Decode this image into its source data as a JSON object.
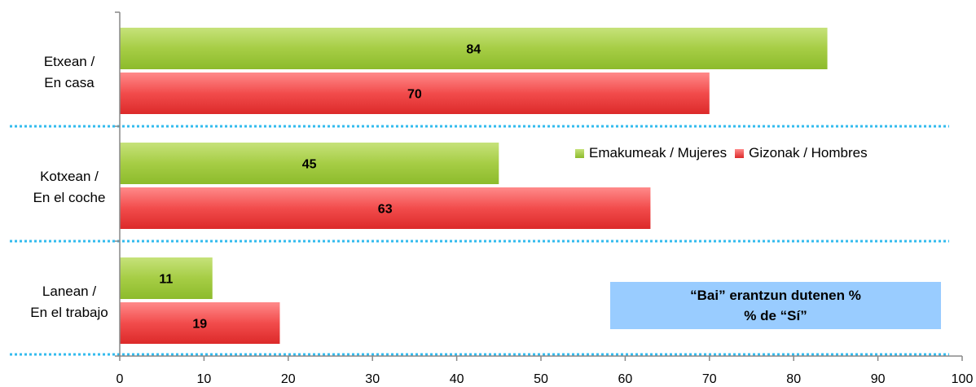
{
  "chart_data": {
    "type": "bar",
    "orientation": "horizontal",
    "categories": [
      {
        "line1": "Etxean /",
        "line2": "En casa"
      },
      {
        "line1": "Kotxean /",
        "line2": "En el coche"
      },
      {
        "line1": "Lanean /",
        "line2": "En el trabajo"
      }
    ],
    "series": [
      {
        "name": "Emakumeak / Mujeres",
        "color": "#99cc33",
        "values": [
          84,
          45,
          11
        ]
      },
      {
        "name": "Gizonak / Hombres",
        "color": "#ee3333",
        "values": [
          70,
          63,
          19
        ]
      }
    ],
    "xlim": [
      0,
      100
    ],
    "xticks": [
      "0",
      "10",
      "20",
      "30",
      "40",
      "50",
      "60",
      "70",
      "80",
      "90",
      "100"
    ],
    "legend_position": "right-middle",
    "grid": false,
    "separator_color": "#33bbee",
    "note": {
      "line1": "“Bai” erantzun dutenen %",
      "line2": "% de “Sí”"
    }
  }
}
